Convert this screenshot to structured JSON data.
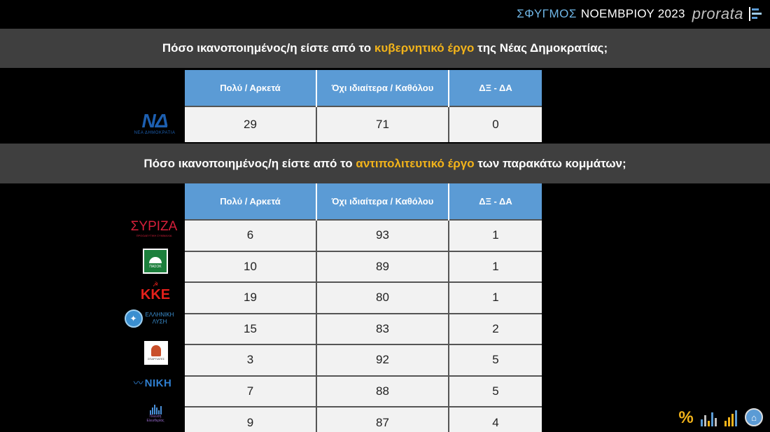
{
  "header": {
    "sfygmos": "ΣΦΥΓΜΟΣ",
    "month": "ΝΟΕΜΒΡΙΟΥ 2023",
    "brand": "prorata"
  },
  "section1": {
    "title_pre": "Πόσο ικανοποιημένος/η είστε από το ",
    "title_hl": "κυβερνητικό έργο",
    "title_post": " της Νέας Δημοκρατίας;"
  },
  "section2": {
    "title_pre": "Πόσο ικανοποιημένος/η είστε από το ",
    "title_hl": "αντιπολιτευτικό έργο",
    "title_post": " των παρακάτω κομμάτων;"
  },
  "logos": {
    "nd_big": "ΝΔ",
    "nd_small": "ΝΕΑ ΔΗΜΟΚΡΑΤΙΑ",
    "syriza_big": "ΣΥΡΙΖΑ",
    "syriza_small": "ΠΡΟΟΔΕΥΤΙΚΗ ΣΥΜΜΑΧΙΑ",
    "pasok_small": "ΠΑΣΟΚ",
    "kke_symbol": "☭",
    "kke_big": "ΚΚΕ",
    "el_line1": "ΕΛΛΗΝΙΚΗ",
    "el_line2": "ΛΥΣΗ",
    "sp_small": "ΣΠΑΡΤΙΑΤΕΣ",
    "niki_big": "ΝΙΚΗ",
    "plefsi_line1": "Πλεύση",
    "plefsi_line2": "Ελευθερίας"
  },
  "colors": {
    "band": "#3f3f3f",
    "highlight": "#f2b31a",
    "header_cell": "#5b9bd5",
    "body_cell": "#f2f2f2"
  },
  "chart_data": [
    {
      "type": "table",
      "columns": [
        "Πολύ / Αρκετά",
        "Όχι ιδιαίτερα / Καθόλου",
        "ΔΞ - ΔΑ"
      ],
      "rows": [
        {
          "party": "ΝΔ",
          "values": [
            29,
            71,
            0
          ]
        }
      ]
    },
    {
      "type": "table",
      "columns": [
        "Πολύ / Αρκετά",
        "Όχι ιδιαίτερα / Καθόλου",
        "ΔΞ - ΔΑ"
      ],
      "rows": [
        {
          "party": "ΣΥΡΙΖΑ",
          "values": [
            6,
            93,
            1
          ]
        },
        {
          "party": "ΠΑΣΟΚ",
          "values": [
            10,
            89,
            1
          ]
        },
        {
          "party": "ΚΚΕ",
          "values": [
            19,
            80,
            1
          ]
        },
        {
          "party": "ΕΛΛΗΝΙΚΗ ΛΥΣΗ",
          "values": [
            15,
            83,
            2
          ]
        },
        {
          "party": "ΣΠΑΡΤΙΑΤΕΣ",
          "values": [
            3,
            92,
            5
          ]
        },
        {
          "party": "ΝΙΚΗ",
          "values": [
            7,
            88,
            5
          ]
        },
        {
          "party": "Πλεύση Ελευθερίας",
          "values": [
            9,
            87,
            4
          ]
        }
      ]
    }
  ],
  "footer_icons": [
    "percent-icon",
    "bar-chart-icon",
    "growth-chart-icon",
    "home-icon"
  ]
}
